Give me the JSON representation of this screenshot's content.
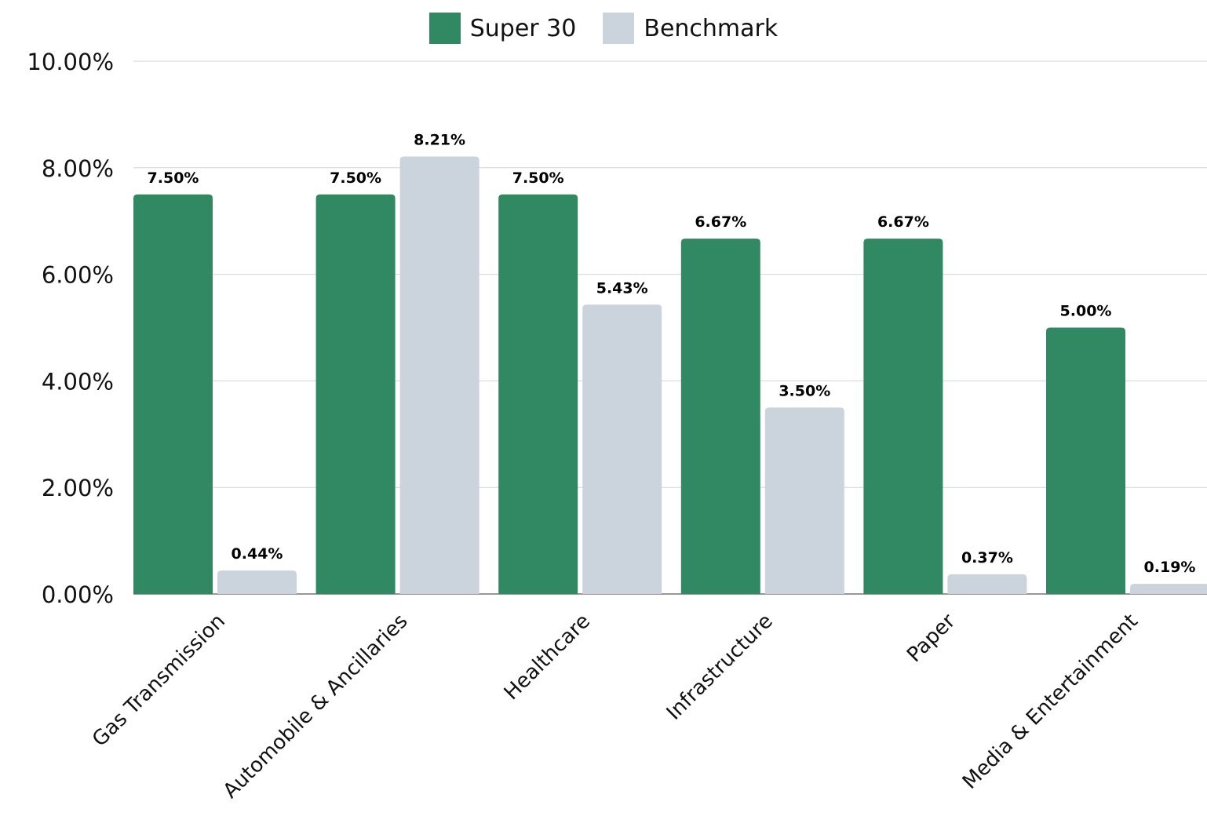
{
  "chart_data": {
    "type": "bar",
    "categories": [
      "Gas Transmission",
      "Automobile & Ancillaries",
      "Healthcare",
      "Infrastructure",
      "Paper",
      "Media & Entertainment"
    ],
    "series": [
      {
        "name": "Super 30",
        "color": "#318963",
        "values": [
          7.5,
          7.5,
          7.5,
          6.67,
          6.67,
          5.0
        ],
        "labels": [
          "7.50%",
          "7.50%",
          "7.50%",
          "6.67%",
          "6.67%",
          "5.00%"
        ]
      },
      {
        "name": "Benchmark",
        "color": "#cbd3dd",
        "values": [
          0.44,
          8.21,
          5.43,
          3.5,
          0.37,
          0.19
        ],
        "labels": [
          "0.44%",
          "8.21%",
          "5.43%",
          "3.50%",
          "0.37%",
          "0.19%"
        ]
      }
    ],
    "yticks": [
      "0.00%",
      "2.00%",
      "4.00%",
      "6.00%",
      "8.00%",
      "10.00%"
    ],
    "ylim": [
      0,
      10
    ],
    "title": "",
    "xlabel": "",
    "ylabel": "",
    "grid": true,
    "legend_position": "top-center"
  }
}
